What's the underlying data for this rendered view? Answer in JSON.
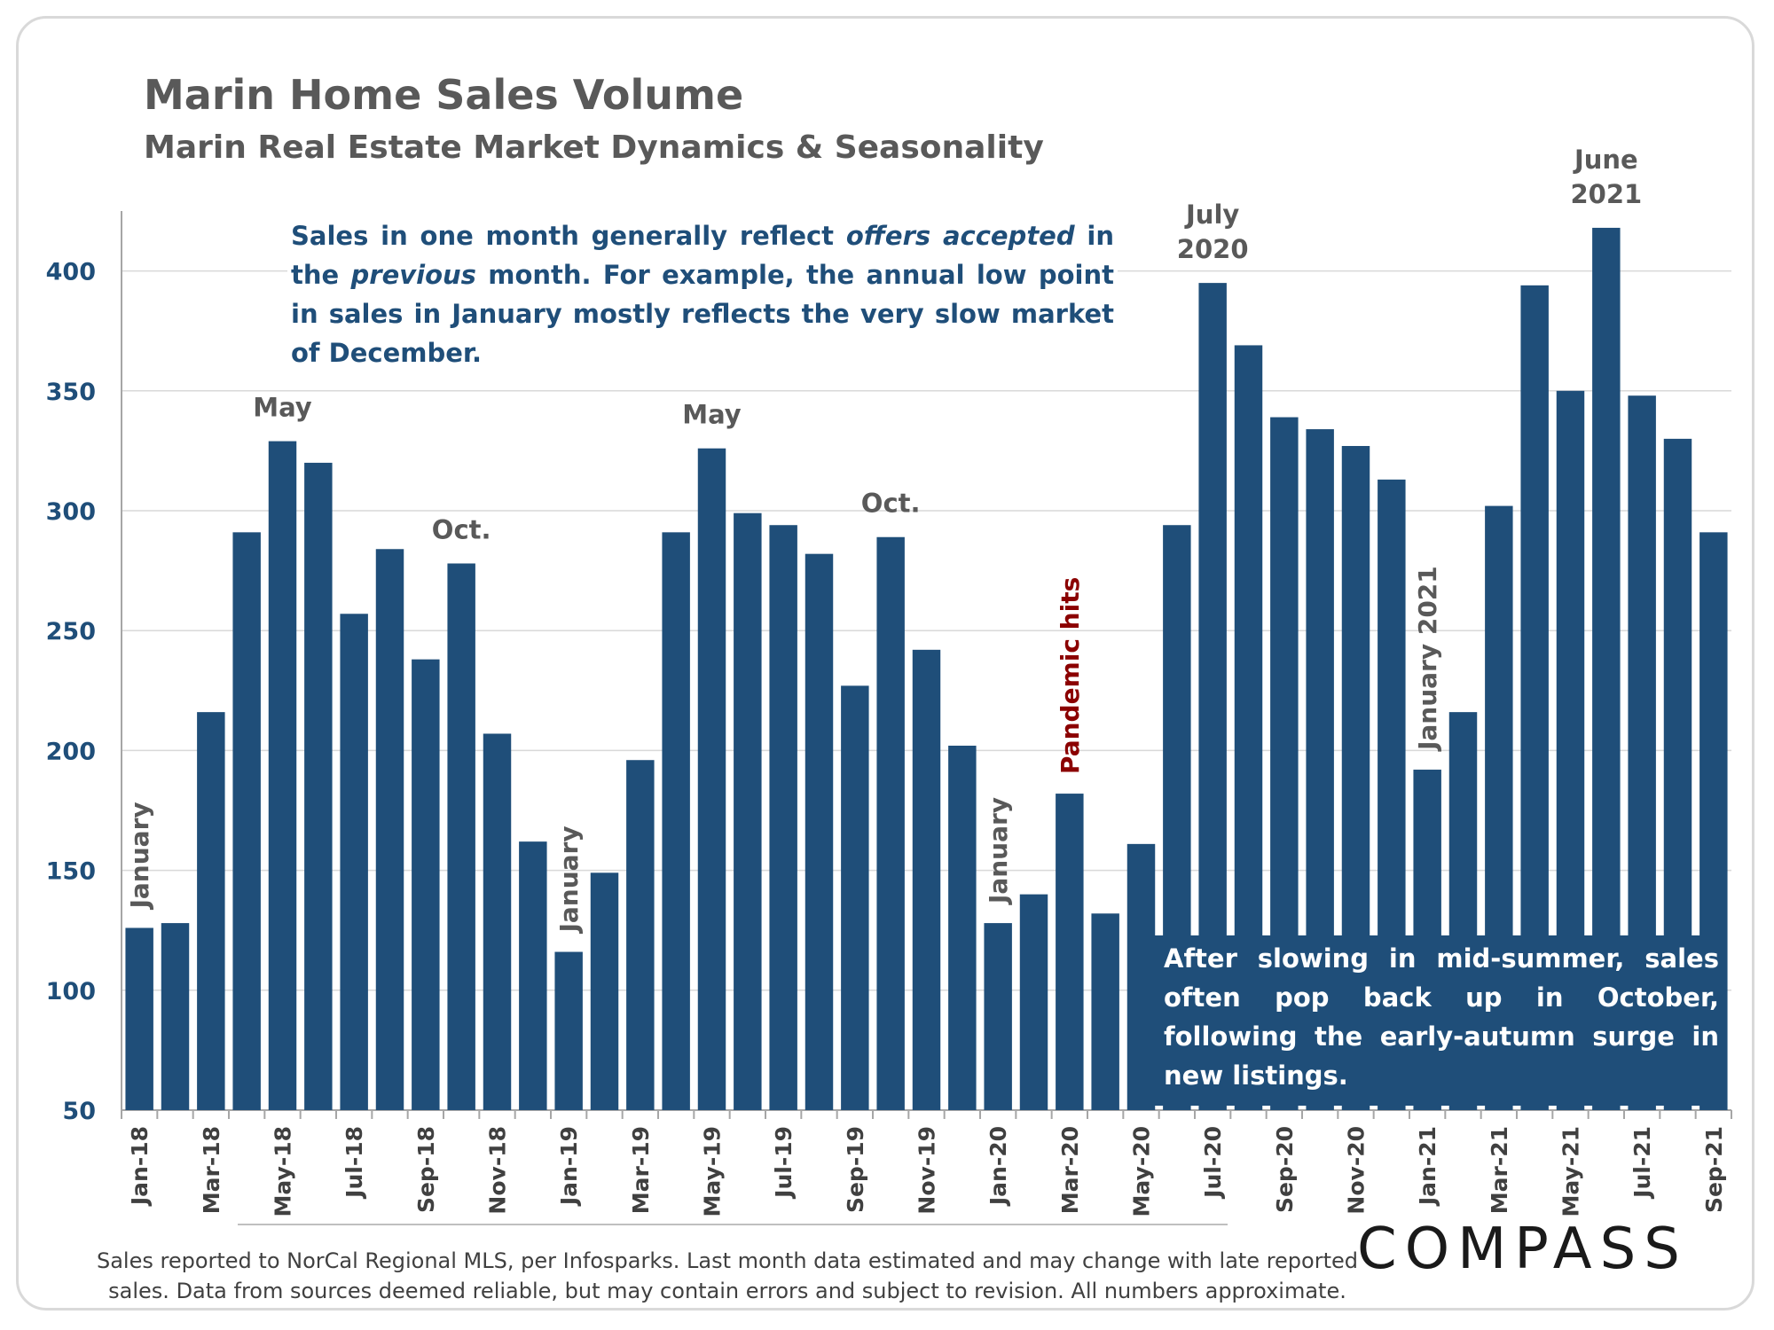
{
  "header": {
    "title": "Marin Home Sales Volume",
    "subtitle": "Marin Real Estate Market Dynamics & Seasonality"
  },
  "notes": {
    "top_parts": [
      {
        "text": "Sales in one month generally reflect ",
        "italic": false
      },
      {
        "text": "offers accepted",
        "italic": true
      },
      {
        "text": " in the ",
        "italic": false
      },
      {
        "text": "previous",
        "italic": true
      },
      {
        "text": " month. For example, the annual low point in sales in January mostly reflects the very slow market of December.",
        "italic": false
      }
    ],
    "bottom": "After slowing in mid-summer, sales often pop back up in October, following the early-autumn surge in new listings."
  },
  "footnote": "Sales reported to NorCal Regional MLS, per Infosparks. Last month data estimated and may change with late reported sales. Data from sources deemed reliable, but may contain errors and subject to revision. All numbers approximate.",
  "logo": "COMPASS",
  "colors": {
    "bar": "#1f4e79",
    "annotation": "#595959",
    "pandemic": "#8b0000",
    "grid": "#d9d9d9"
  },
  "chart_data": {
    "type": "bar",
    "title": "Marin Home Sales Volume",
    "subtitle": "Marin Real Estate Market Dynamics & Seasonality",
    "xlabel": "",
    "ylabel": "",
    "ylim": [
      50,
      425
    ],
    "yticks": [
      50,
      100,
      150,
      200,
      250,
      300,
      350,
      400
    ],
    "grid": true,
    "categories": [
      "Jan-18",
      "Feb-18",
      "Mar-18",
      "Apr-18",
      "May-18",
      "Jun-18",
      "Jul-18",
      "Aug-18",
      "Sep-18",
      "Oct-18",
      "Nov-18",
      "Dec-18",
      "Jan-19",
      "Feb-19",
      "Mar-19",
      "Apr-19",
      "May-19",
      "Jun-19",
      "Jul-19",
      "Aug-19",
      "Sep-19",
      "Oct-19",
      "Nov-19",
      "Dec-19",
      "Jan-20",
      "Feb-20",
      "Mar-20",
      "Apr-20",
      "May-20",
      "Jun-20",
      "Jul-20",
      "Aug-20",
      "Sep-20",
      "Oct-20",
      "Nov-20",
      "Dec-20",
      "Jan-21",
      "Feb-21",
      "Mar-21",
      "Apr-21",
      "May-21",
      "Jun-21",
      "Jul-21",
      "Aug-21",
      "Sep-21"
    ],
    "tick_labels": [
      "Jan-18",
      "Mar-18",
      "May-18",
      "Jul-18",
      "Sep-18",
      "Nov-18",
      "Jan-19",
      "Mar-19",
      "May-19",
      "Jul-19",
      "Sep-19",
      "Nov-19",
      "Jan-20",
      "Mar-20",
      "May-20",
      "Jul-20",
      "Sep-20",
      "Nov-20",
      "Jan-21",
      "Mar-21",
      "May-21",
      "Jul-21",
      "Sep-21"
    ],
    "values": [
      126,
      128,
      216,
      291,
      329,
      320,
      257,
      284,
      238,
      278,
      207,
      162,
      116,
      149,
      196,
      291,
      326,
      299,
      294,
      282,
      227,
      289,
      242,
      202,
      128,
      140,
      182,
      132,
      161,
      294,
      395,
      369,
      339,
      334,
      327,
      313,
      192,
      216,
      302,
      394,
      350,
      418,
      348,
      330,
      291
    ],
    "annotations": [
      {
        "text": "January",
        "index": 0,
        "orientation": "vertical",
        "color": "annotation"
      },
      {
        "text": "May",
        "index": 4,
        "orientation": "horizontal",
        "color": "annotation"
      },
      {
        "text": "Oct.",
        "index": 9,
        "orientation": "horizontal",
        "color": "annotation"
      },
      {
        "text": "January",
        "index": 12,
        "orientation": "vertical",
        "color": "annotation"
      },
      {
        "text": "May",
        "index": 16,
        "orientation": "horizontal",
        "color": "annotation"
      },
      {
        "text": "Oct.",
        "index": 21,
        "orientation": "horizontal",
        "color": "annotation"
      },
      {
        "text": "January",
        "index": 24,
        "orientation": "vertical",
        "color": "annotation"
      },
      {
        "text": "Pandemic hits",
        "index": 26,
        "orientation": "vertical",
        "color": "pandemic"
      },
      {
        "text": "July\n2020",
        "index": 30,
        "orientation": "horizontal",
        "color": "annotation"
      },
      {
        "text": "January 2021",
        "index": 36,
        "orientation": "vertical",
        "color": "annotation"
      },
      {
        "text": "June\n2021",
        "index": 41,
        "orientation": "horizontal",
        "color": "annotation"
      }
    ]
  }
}
